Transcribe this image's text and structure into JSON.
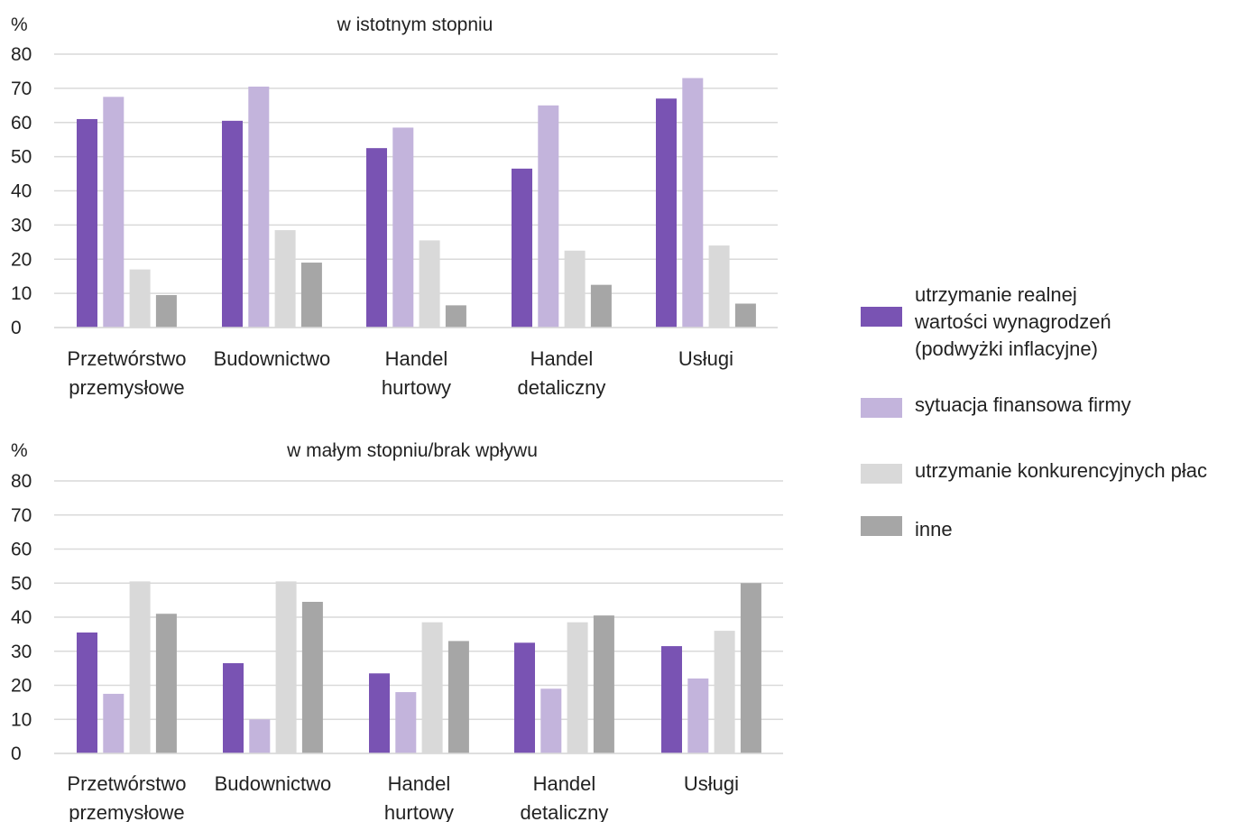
{
  "colors": {
    "series1": "#7953b3",
    "series2": "#c3b4dc",
    "series3": "#d9d9d9",
    "series4": "#a6a6a6",
    "grid": "#d9d9d9"
  },
  "legend": {
    "placement": "right",
    "entries": [
      {
        "lines": [
          "utrzymanie realnej",
          "wartości wynagrodzeń",
          "(podwyżki inflacyjne)"
        ]
      },
      {
        "lines": [
          "sytuacja finansowa firmy"
        ]
      },
      {
        "lines": [
          "utrzymanie konkurencyjnych płac"
        ]
      },
      {
        "lines": [
          "inne"
        ]
      }
    ]
  },
  "chart_data": [
    {
      "type": "bar",
      "title": "w istotnym stopniu",
      "ylabel": "%",
      "ylim": [
        0,
        80
      ],
      "yticks": [
        0,
        10,
        20,
        30,
        40,
        50,
        60,
        70,
        80
      ],
      "grid": true,
      "categories": [
        [
          "Przetwórstwo",
          "przemysłowe"
        ],
        [
          "Budownictwo"
        ],
        [
          "Handel",
          "hurtowy"
        ],
        [
          "Handel",
          "detaliczny"
        ],
        [
          "Usługi"
        ]
      ],
      "series": [
        {
          "name": "utrzymanie realnej wartości wynagrodzeń (podwyżki inflacyjne)",
          "values": [
            61,
            60.5,
            52.5,
            46.5,
            67
          ]
        },
        {
          "name": "sytuacja finansowa firmy",
          "values": [
            67.5,
            70.5,
            58.5,
            65,
            73
          ]
        },
        {
          "name": "utrzymanie konkurencyjnych płac",
          "values": [
            17,
            28.5,
            25.5,
            22.5,
            24
          ]
        },
        {
          "name": "inne",
          "values": [
            9.5,
            19,
            6.5,
            12.5,
            7
          ]
        }
      ]
    },
    {
      "type": "bar",
      "title": "w małym stopniu/brak wpływu",
      "ylabel": "%",
      "ylim": [
        0,
        80
      ],
      "yticks": [
        0,
        10,
        20,
        30,
        40,
        50,
        60,
        70,
        80
      ],
      "grid": true,
      "categories": [
        [
          "Przetwórstwo",
          "przemysłowe"
        ],
        [
          "Budownictwo"
        ],
        [
          "Handel",
          "hurtowy"
        ],
        [
          "Handel",
          "detaliczny"
        ],
        [
          "Usługi"
        ]
      ],
      "series": [
        {
          "name": "utrzymanie realnej wartości wynagrodzeń (podwyżki inflacyjne)",
          "values": [
            35.5,
            26.5,
            23.5,
            32.5,
            31.5
          ]
        },
        {
          "name": "sytuacja finansowa firmy",
          "values": [
            17.5,
            10,
            18,
            19,
            22
          ]
        },
        {
          "name": "utrzymanie konkurencyjnych płac",
          "values": [
            50.5,
            50.5,
            38.5,
            38.5,
            36
          ]
        },
        {
          "name": "inne",
          "values": [
            41,
            44.5,
            33,
            40.5,
            50
          ]
        }
      ]
    }
  ]
}
